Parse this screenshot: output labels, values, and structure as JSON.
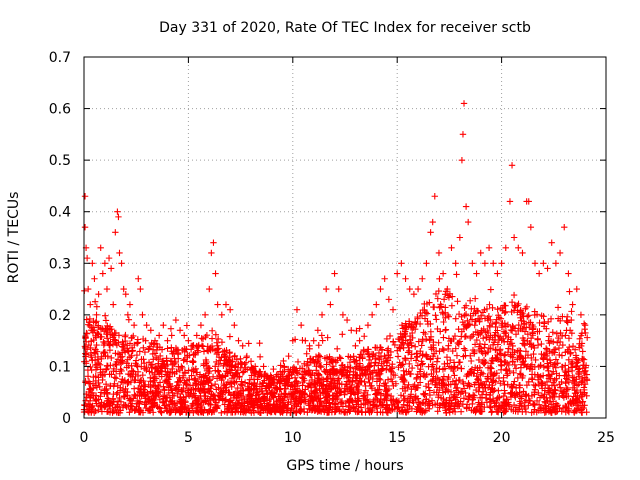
{
  "chart_data": {
    "type": "scatter",
    "title": "Day 331 of 2020, Rate Of TEC Index for receiver sctb",
    "xlabel": "GPS time / hours",
    "ylabel": "ROTI / TECUs",
    "xlim": [
      0,
      25
    ],
    "ylim": [
      0,
      0.7
    ],
    "xticks": [
      0,
      5,
      10,
      15,
      20,
      25
    ],
    "yticks": [
      0,
      0.1,
      0.2,
      0.3,
      0.4,
      0.5,
      0.6,
      0.7
    ],
    "xtick_labels": [
      "0",
      "5",
      "10",
      "15",
      "20",
      "25"
    ],
    "ytick_labels": [
      "0",
      "0.1",
      "0.2",
      "0.3",
      "0.4",
      "0.5",
      "0.6",
      "0.7"
    ],
    "grid": true,
    "marker": "+",
    "color": "#ff0000",
    "series": [
      {
        "name": "ROTI",
        "points": [
          [
            0.05,
            0.43
          ],
          [
            0.05,
            0.37
          ],
          [
            0.1,
            0.33
          ],
          [
            0.15,
            0.31
          ],
          [
            0.2,
            0.25
          ],
          [
            0.3,
            0.22
          ],
          [
            0.4,
            0.3
          ],
          [
            0.5,
            0.27
          ],
          [
            0.6,
            0.2
          ],
          [
            0.7,
            0.24
          ],
          [
            0.8,
            0.33
          ],
          [
            0.9,
            0.28
          ],
          [
            1.0,
            0.3
          ],
          [
            1.1,
            0.25
          ],
          [
            1.2,
            0.31
          ],
          [
            1.3,
            0.29
          ],
          [
            1.4,
            0.22
          ],
          [
            1.5,
            0.36
          ],
          [
            1.6,
            0.4
          ],
          [
            1.65,
            0.39
          ],
          [
            1.7,
            0.32
          ],
          [
            1.8,
            0.3
          ],
          [
            1.9,
            0.25
          ],
          [
            2.0,
            0.24
          ],
          [
            2.1,
            0.2
          ],
          [
            2.2,
            0.22
          ],
          [
            2.4,
            0.18
          ],
          [
            2.6,
            0.27
          ],
          [
            2.7,
            0.25
          ],
          [
            2.8,
            0.2
          ],
          [
            3.0,
            0.18
          ],
          [
            3.2,
            0.17
          ],
          [
            3.4,
            0.15
          ],
          [
            3.6,
            0.16
          ],
          [
            3.8,
            0.18
          ],
          [
            4.0,
            0.15
          ],
          [
            4.2,
            0.16
          ],
          [
            4.4,
            0.19
          ],
          [
            4.6,
            0.17
          ],
          [
            4.8,
            0.16
          ],
          [
            5.0,
            0.15
          ],
          [
            5.2,
            0.14
          ],
          [
            5.4,
            0.16
          ],
          [
            5.6,
            0.18
          ],
          [
            5.8,
            0.2
          ],
          [
            6.0,
            0.25
          ],
          [
            6.1,
            0.32
          ],
          [
            6.2,
            0.34
          ],
          [
            6.3,
            0.28
          ],
          [
            6.4,
            0.22
          ],
          [
            6.6,
            0.2
          ],
          [
            6.8,
            0.22
          ],
          [
            7.0,
            0.21
          ],
          [
            7.2,
            0.18
          ],
          [
            7.4,
            0.15
          ],
          [
            7.6,
            0.14
          ],
          [
            7.8,
            0.12
          ],
          [
            8.0,
            0.11
          ],
          [
            8.2,
            0.1
          ],
          [
            8.4,
            0.09
          ],
          [
            8.6,
            0.1
          ],
          [
            8.8,
            0.08
          ],
          [
            9.0,
            0.07
          ],
          [
            9.2,
            0.08
          ],
          [
            9.4,
            0.09
          ],
          [
            9.6,
            0.1
          ],
          [
            9.8,
            0.12
          ],
          [
            10.0,
            0.15
          ],
          [
            10.2,
            0.21
          ],
          [
            10.4,
            0.18
          ],
          [
            10.6,
            0.15
          ],
          [
            10.8,
            0.14
          ],
          [
            11.0,
            0.15
          ],
          [
            11.2,
            0.17
          ],
          [
            11.4,
            0.2
          ],
          [
            11.6,
            0.25
          ],
          [
            11.8,
            0.22
          ],
          [
            12.0,
            0.28
          ],
          [
            12.2,
            0.25
          ],
          [
            12.4,
            0.2
          ],
          [
            12.6,
            0.19
          ],
          [
            12.8,
            0.17
          ],
          [
            13.0,
            0.14
          ],
          [
            13.2,
            0.15
          ],
          [
            13.4,
            0.13
          ],
          [
            13.6,
            0.18
          ],
          [
            13.8,
            0.2
          ],
          [
            14.0,
            0.22
          ],
          [
            14.2,
            0.25
          ],
          [
            14.4,
            0.27
          ],
          [
            14.6,
            0.23
          ],
          [
            14.8,
            0.21
          ],
          [
            15.0,
            0.28
          ],
          [
            15.2,
            0.3
          ],
          [
            15.4,
            0.27
          ],
          [
            15.6,
            0.25
          ],
          [
            15.8,
            0.24
          ],
          [
            16.0,
            0.25
          ],
          [
            16.2,
            0.27
          ],
          [
            16.4,
            0.3
          ],
          [
            16.6,
            0.36
          ],
          [
            16.7,
            0.38
          ],
          [
            16.8,
            0.43
          ],
          [
            17.0,
            0.32
          ],
          [
            17.2,
            0.28
          ],
          [
            17.4,
            0.25
          ],
          [
            17.6,
            0.33
          ],
          [
            17.8,
            0.3
          ],
          [
            18.0,
            0.35
          ],
          [
            18.1,
            0.5
          ],
          [
            18.15,
            0.55
          ],
          [
            18.2,
            0.61
          ],
          [
            18.3,
            0.41
          ],
          [
            18.4,
            0.38
          ],
          [
            18.6,
            0.3
          ],
          [
            18.8,
            0.28
          ],
          [
            19.0,
            0.32
          ],
          [
            19.2,
            0.3
          ],
          [
            19.4,
            0.33
          ],
          [
            19.6,
            0.3
          ],
          [
            19.8,
            0.28
          ],
          [
            20.0,
            0.3
          ],
          [
            20.2,
            0.33
          ],
          [
            20.4,
            0.42
          ],
          [
            20.5,
            0.49
          ],
          [
            20.6,
            0.35
          ],
          [
            20.8,
            0.33
          ],
          [
            21.0,
            0.32
          ],
          [
            21.2,
            0.42
          ],
          [
            21.3,
            0.42
          ],
          [
            21.4,
            0.37
          ],
          [
            21.6,
            0.3
          ],
          [
            21.8,
            0.28
          ],
          [
            22.0,
            0.3
          ],
          [
            22.2,
            0.29
          ],
          [
            22.4,
            0.34
          ],
          [
            22.6,
            0.3
          ],
          [
            22.8,
            0.32
          ],
          [
            23.0,
            0.37
          ],
          [
            23.2,
            0.28
          ],
          [
            23.4,
            0.22
          ],
          [
            23.6,
            0.25
          ],
          [
            23.8,
            0.2
          ],
          [
            24.0,
            0.18
          ]
        ]
      }
    ],
    "density_profile": {
      "x": [
        0,
        1,
        2,
        3,
        4,
        5,
        6,
        7,
        8,
        9,
        10,
        11,
        12,
        13,
        14,
        15,
        16,
        17,
        18,
        19,
        20,
        21,
        22,
        23,
        24
      ],
      "typical_max": [
        0.2,
        0.18,
        0.17,
        0.15,
        0.14,
        0.14,
        0.15,
        0.13,
        0.1,
        0.08,
        0.1,
        0.12,
        0.12,
        0.12,
        0.15,
        0.18,
        0.2,
        0.25,
        0.24,
        0.22,
        0.22,
        0.23,
        0.2,
        0.2,
        0.18
      ],
      "baseline_min": 0.01,
      "points_per_hour": 140
    }
  }
}
